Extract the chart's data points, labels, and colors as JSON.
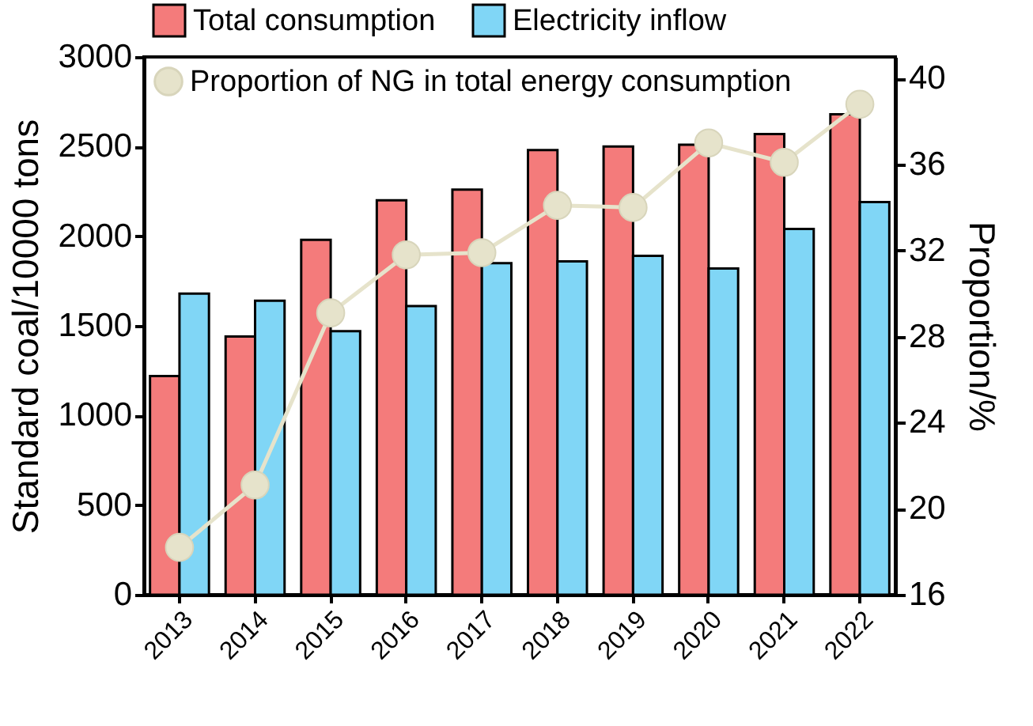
{
  "chart_data": {
    "type": "bar",
    "categories": [
      "2013",
      "2014",
      "2015",
      "2016",
      "2017",
      "2018",
      "2019",
      "2020",
      "2021",
      "2022"
    ],
    "ylabel": "Standard coal/10000 tons",
    "y2label": "Proportion/%",
    "ylim": [
      0,
      3000
    ],
    "yticks": [
      0,
      500,
      1000,
      1500,
      2000,
      2500,
      3000
    ],
    "y2lim": [
      16,
      41
    ],
    "y2ticks": [
      16,
      20,
      24,
      28,
      32,
      36,
      40
    ],
    "legend": "top",
    "grid": false,
    "marker": "circle",
    "line_style": "solid",
    "series": [
      {
        "name": "Total consumption",
        "color": "#f47b7b",
        "values": [
          1220,
          1440,
          1980,
          2200,
          2260,
          2480,
          2500,
          2510,
          2570,
          2680
        ]
      },
      {
        "name": "Electricity inflow",
        "color": "#80d6f6",
        "values": [
          1680,
          1640,
          1470,
          1610,
          1850,
          1860,
          1890,
          1820,
          2040,
          2190
        ]
      },
      {
        "name": "Proportion of NG in total energy consumption",
        "type": "line",
        "axis": "y2",
        "color": "#e6e3cb",
        "values": [
          18.2,
          21.1,
          29.1,
          31.8,
          31.9,
          34.1,
          34.0,
          37.0,
          36.1,
          38.8
        ]
      }
    ]
  }
}
